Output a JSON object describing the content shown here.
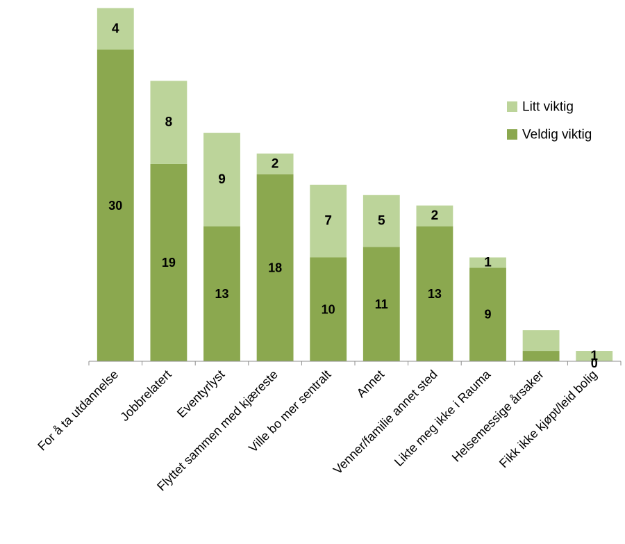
{
  "chart_data": {
    "type": "bar",
    "stacked": true,
    "categories": [
      "For å ta utdannelse",
      "Jobbrelatert",
      "Eventyrlyst",
      "Flyttet sammen med kjæreste",
      "Ville bo mer sentralt",
      "Annet",
      "Venner/familie annet sted",
      "Likte meg ikke i Rauma",
      "Helsemessige årsaker",
      "Fikk ikke kjøpt/leid bolig"
    ],
    "series": [
      {
        "name": "Veldig viktig",
        "color": "#8ba84f",
        "values": [
          30,
          19,
          13,
          18,
          10,
          11,
          13,
          9,
          1,
          0
        ],
        "labels": [
          "30",
          "19",
          "13",
          "18",
          "10",
          "11",
          "13",
          "9",
          "",
          "0"
        ]
      },
      {
        "name": "Litt viktig",
        "color": "#bcd49a",
        "values": [
          4,
          8,
          9,
          2,
          7,
          5,
          2,
          1,
          2,
          1
        ],
        "labels": [
          "4",
          "8",
          "9",
          "2",
          "7",
          "5",
          "2",
          "1",
          "",
          "1"
        ]
      }
    ],
    "ylim": [
      0,
      34
    ],
    "grid": false,
    "legend_position": "right",
    "legend_order": [
      "Litt viktig",
      "Veldig viktig"
    ],
    "title": "",
    "xlabel": "",
    "ylabel": ""
  }
}
